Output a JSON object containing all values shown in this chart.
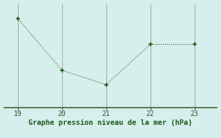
{
  "x": [
    19,
    20,
    21,
    22,
    23
  ],
  "y": [
    1025.5,
    1016.5,
    1014.0,
    1021.0,
    1021.0
  ],
  "line_color": "#1a5c1a",
  "marker_color": "#1a5c1a",
  "bg_color": "#d6eeec",
  "xlabel": "Graphe pression niveau de la mer (hPa)",
  "xlabel_color": "#1a5c1a",
  "tick_color": "#1a5c1a",
  "xlim": [
    18.7,
    23.5
  ],
  "ylim": [
    1010.0,
    1028.0
  ],
  "xticks": [
    19,
    20,
    21,
    22,
    23
  ],
  "vline_color": "#aaaaaa",
  "bottom_line_color": "#336633",
  "tick_fontsize": 7,
  "xlabel_fontsize": 7.5
}
